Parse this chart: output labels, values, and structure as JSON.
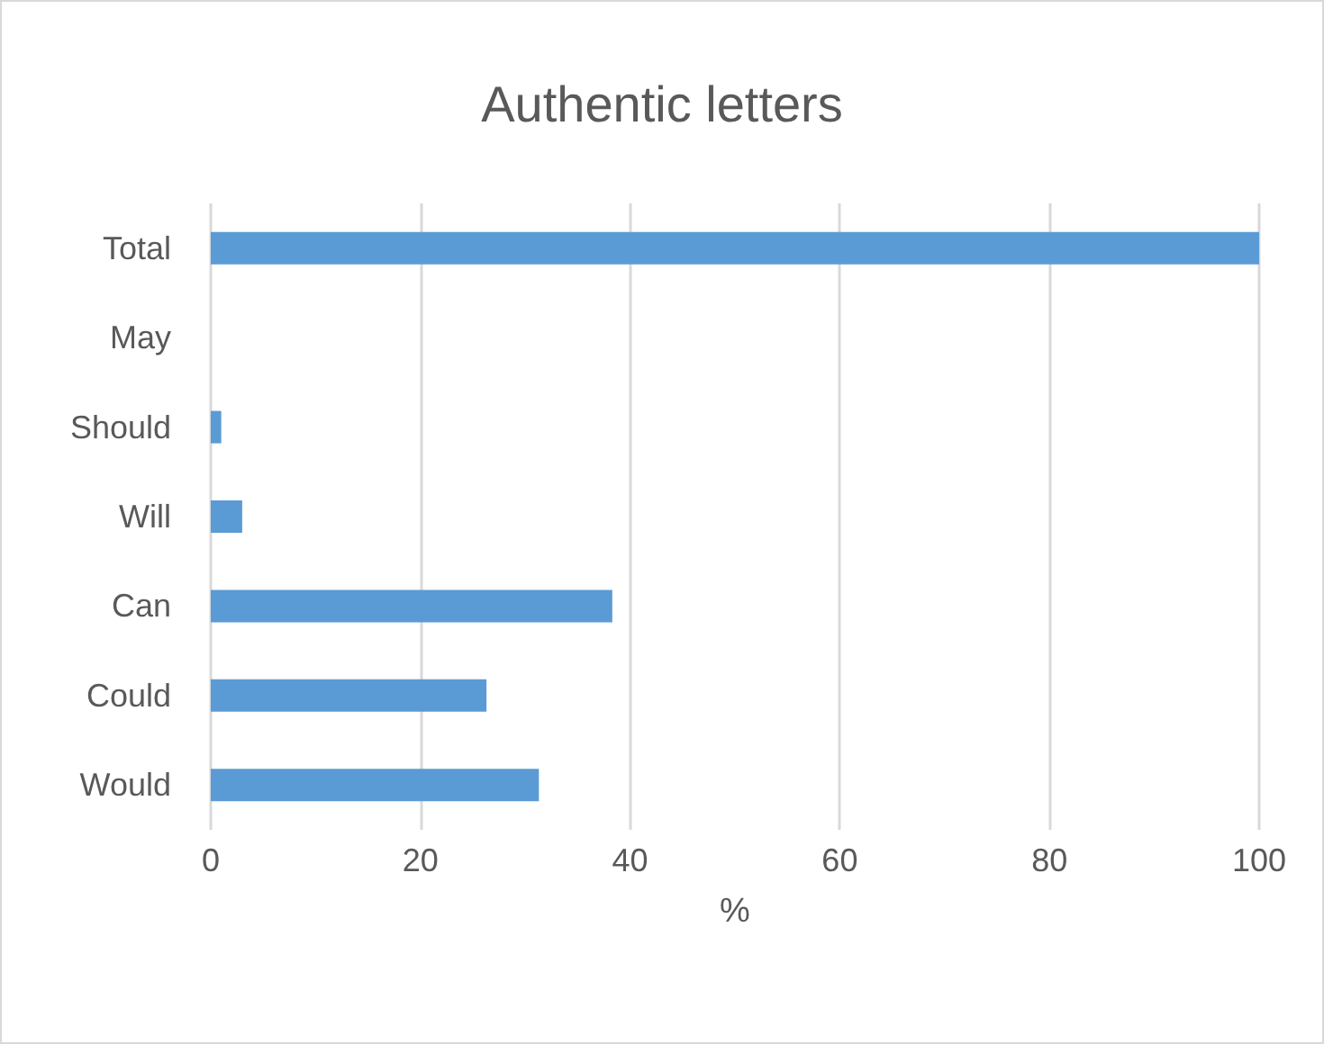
{
  "chart_data": {
    "type": "bar",
    "orientation": "horizontal",
    "title": "Authentic letters",
    "xlabel": "%",
    "categories": [
      "Total",
      "May",
      "Should",
      "Will",
      "Can",
      "Could",
      "Would"
    ],
    "values": [
      100,
      0,
      1.0,
      3.0,
      38.3,
      26.3,
      31.3
    ],
    "color": "#5b9bd5",
    "xlim": [
      0,
      100
    ],
    "xticks": [
      0,
      20,
      40,
      60,
      80,
      100
    ],
    "grid": "x"
  }
}
